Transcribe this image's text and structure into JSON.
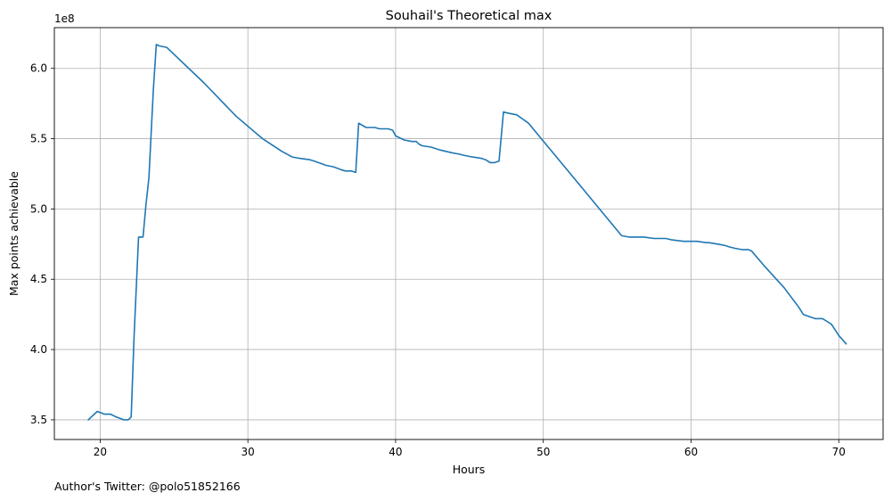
{
  "chart_data": {
    "type": "line",
    "title": "Souhail's Theoretical max",
    "xlabel": "Hours",
    "ylabel": "Max points achievable",
    "offset_text": "1e8",
    "footnote": "Author's Twitter: @polo51852166",
    "grid": true,
    "legend": "none",
    "xlim": [
      16.9,
      73.0
    ],
    "ylim": [
      3.36,
      6.29
    ],
    "x_ticks": [
      20,
      30,
      40,
      50,
      60,
      70
    ],
    "x_tick_labels": [
      "20",
      "30",
      "40",
      "50",
      "60",
      "70"
    ],
    "y_ticks": [
      3.5,
      4.0,
      4.5,
      5.0,
      5.5,
      6.0
    ],
    "y_tick_labels": [
      "3.5",
      "4.0",
      "4.5",
      "5.0",
      "5.5",
      "6.0"
    ],
    "line_color": "#1f77b4",
    "series": [
      {
        "name": "Theoretical max (×1e8)",
        "x": [
          19.2,
          19.8,
          20.3,
          20.7,
          21.1,
          21.6,
          21.9,
          22.1,
          22.3,
          22.6,
          22.9,
          23.1,
          23.3,
          23.6,
          23.8,
          24.0,
          24.5,
          27.0,
          29.2,
          31.0,
          32.3,
          33.0,
          33.5,
          34.2,
          34.5,
          35.3,
          35.8,
          36.3,
          36.6,
          37.0,
          37.3,
          37.5,
          38.0,
          38.6,
          38.9,
          39.5,
          39.8,
          40.0,
          40.4,
          40.6,
          41.1,
          41.4,
          41.6,
          41.8,
          42.4,
          43.0,
          43.4,
          43.8,
          44.3,
          44.7,
          45.2,
          45.8,
          46.1,
          46.4,
          46.7,
          47.0,
          47.3,
          47.7,
          48.2,
          48.6,
          49.0,
          55.3,
          55.8,
          56.8,
          57.5,
          58.3,
          58.7,
          59.5,
          60.0,
          60.4,
          61.0,
          61.2,
          61.8,
          62.3,
          62.6,
          63.0,
          63.5,
          63.9,
          64.1,
          65.0,
          66.3,
          67.3,
          67.6,
          68.1,
          68.4,
          68.9,
          69.2,
          69.5,
          70.0,
          70.5
        ],
        "y": [
          3.5,
          3.56,
          3.54,
          3.54,
          3.52,
          3.5,
          3.5,
          3.52,
          4.1,
          4.8,
          4.8,
          5.03,
          5.22,
          5.85,
          6.17,
          6.16,
          6.15,
          5.9,
          5.66,
          5.5,
          5.41,
          5.37,
          5.36,
          5.35,
          5.34,
          5.31,
          5.3,
          5.28,
          5.27,
          5.27,
          5.26,
          5.61,
          5.58,
          5.58,
          5.57,
          5.57,
          5.56,
          5.52,
          5.5,
          5.49,
          5.48,
          5.48,
          5.46,
          5.45,
          5.44,
          5.42,
          5.41,
          5.4,
          5.39,
          5.38,
          5.37,
          5.36,
          5.35,
          5.33,
          5.33,
          5.34,
          5.69,
          5.68,
          5.67,
          5.64,
          5.61,
          4.81,
          4.8,
          4.8,
          4.79,
          4.79,
          4.78,
          4.77,
          4.77,
          4.77,
          4.76,
          4.76,
          4.75,
          4.74,
          4.73,
          4.72,
          4.71,
          4.71,
          4.7,
          4.59,
          4.44,
          4.3,
          4.25,
          4.23,
          4.22,
          4.22,
          4.2,
          4.18,
          4.1,
          4.04
        ]
      }
    ]
  }
}
